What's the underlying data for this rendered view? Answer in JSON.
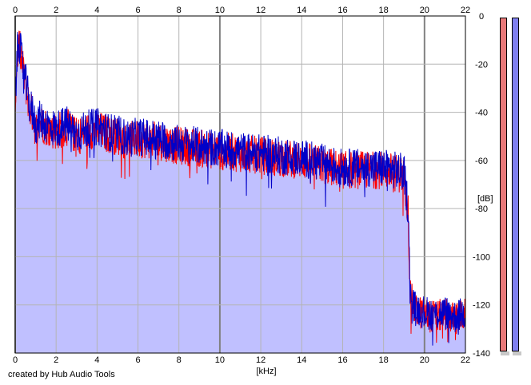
{
  "footer": {
    "credit": "created by Hub Audio Tools"
  },
  "meters": [
    {
      "name": "left-channel",
      "color": "#e87878",
      "level": 1.0
    },
    {
      "name": "right-channel",
      "color": "#8080f0",
      "level": 1.0
    }
  ],
  "chart_data": {
    "type": "area",
    "title": "",
    "xlabel": "[kHz]",
    "ylabel": "[dB]",
    "xlim": [
      0,
      22
    ],
    "ylim": [
      -140,
      0
    ],
    "x_ticks": [
      "0",
      "2",
      "4",
      "6",
      "8",
      "10",
      "12",
      "14",
      "16",
      "18",
      "20",
      "22"
    ],
    "y_ticks": [
      "0",
      "-20",
      "-40",
      "-60",
      "-80",
      "-100",
      "-120",
      "-140"
    ],
    "grid": true,
    "colors": {
      "fill": "#c0c0ff",
      "left": "#ff0000",
      "right": "#0000c8",
      "grid": "#b4b4b4",
      "grid_major": "#808080"
    },
    "series": [
      {
        "color": "#ff0000",
        "x": [
          0,
          0.1,
          0.2,
          0.3,
          0.5,
          0.7,
          0.9,
          1.0,
          1.2,
          1.5,
          2.0,
          2.5,
          3.0,
          3.5,
          4.0,
          4.5,
          5.0,
          5.5,
          6.0,
          7.0,
          8.0,
          9.0,
          10.0,
          11.0,
          12.0,
          13.0,
          14.0,
          15.0,
          16.0,
          17.0,
          18.0,
          18.5,
          19.0,
          19.2,
          19.3,
          19.5,
          20.0,
          20.5,
          21.0,
          21.5,
          22.0
        ],
        "y": [
          -38,
          -16,
          -12,
          -18,
          -28,
          -38,
          -42,
          -48,
          -44,
          -46,
          -48,
          -46,
          -50,
          -48,
          -47,
          -49,
          -50,
          -52,
          -51,
          -52,
          -54,
          -55,
          -56,
          -57,
          -58,
          -59,
          -60,
          -62,
          -64,
          -64,
          -64,
          -65,
          -66,
          -80,
          -115,
          -122,
          -124,
          -125,
          -124,
          -126,
          -124
        ]
      },
      {
        "color": "#0000c8",
        "x": [
          0,
          0.1,
          0.2,
          0.3,
          0.5,
          0.7,
          0.9,
          1.0,
          1.2,
          1.5,
          2.0,
          2.5,
          3.0,
          3.5,
          4.0,
          4.5,
          5.0,
          5.5,
          6.0,
          7.0,
          8.0,
          9.0,
          10.0,
          11.0,
          12.0,
          13.0,
          14.0,
          15.0,
          16.0,
          17.0,
          18.0,
          18.5,
          19.0,
          19.2,
          19.3,
          19.5,
          20.0,
          20.5,
          21.0,
          21.5,
          22.0
        ],
        "y": [
          -36,
          -15,
          -11,
          -17,
          -27,
          -37,
          -41,
          -46,
          -43,
          -45,
          -47,
          -45,
          -49,
          -47,
          -46,
          -48,
          -49,
          -51,
          -50,
          -51,
          -53,
          -54,
          -55,
          -56,
          -57,
          -58,
          -59,
          -61,
          -63,
          -63,
          -63,
          -64,
          -65,
          -80,
          -114,
          -121,
          -123,
          -124,
          -123,
          -125,
          -123
        ]
      }
    ],
    "envelope": {
      "x": [
        0,
        0.1,
        0.2,
        0.3,
        0.5,
        0.7,
        0.9,
        1.2,
        1.5,
        2.0,
        2.5,
        3.0,
        3.5,
        4.0,
        4.5,
        5.0,
        6.0,
        7.0,
        8.0,
        9.0,
        10.0,
        11.0,
        12.0,
        13.0,
        14.0,
        15.0,
        16.0,
        17.0,
        18.0,
        18.5,
        19.0,
        19.2,
        19.3,
        19.5,
        20.0,
        20.5,
        21.0,
        21.5,
        22.0
      ],
      "y": [
        -36,
        -14,
        -10,
        -16,
        -26,
        -36,
        -40,
        -42,
        -44,
        -46,
        -44,
        -47,
        -46,
        -45,
        -47,
        -48,
        -49,
        -50,
        -52,
        -53,
        -54,
        -55,
        -56,
        -57,
        -58,
        -60,
        -62,
        -62,
        -62,
        -63,
        -64,
        -78,
        -112,
        -118,
        -120,
        -121,
        -120,
        -122,
        -121
      ]
    }
  }
}
